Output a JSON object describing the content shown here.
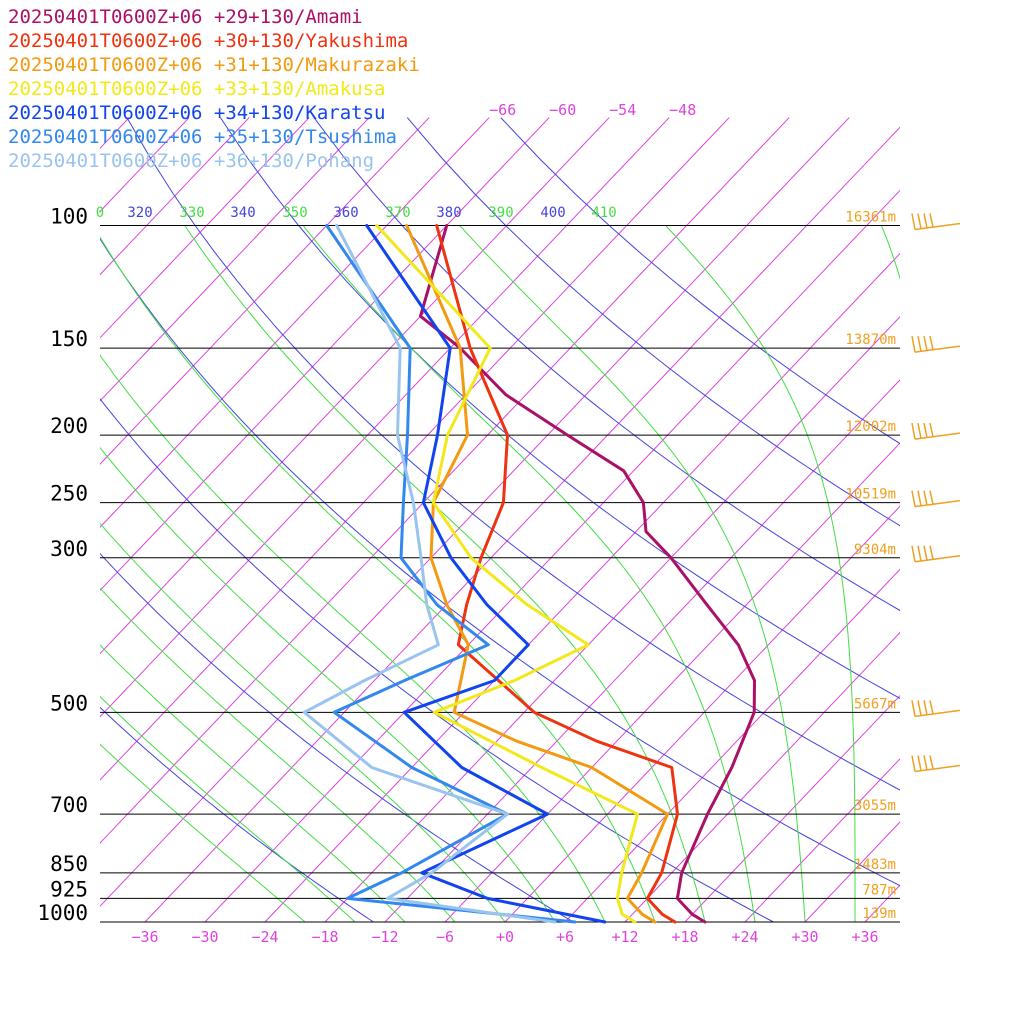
{
  "chart_data": {
    "type": "line",
    "title": "",
    "xlabel": "",
    "ylabel": "",
    "x_axis_unit": "°C (skewed isotherms)",
    "y_axis_scale": "log pressure (hPa)",
    "pressure_levels": [
      100,
      150,
      200,
      250,
      300,
      500,
      700,
      850,
      925,
      1000
    ],
    "pressure_level_labels": [
      "100",
      "150",
      "200",
      "250",
      "300",
      "500",
      "700",
      "850",
      "925",
      "1000"
    ],
    "temperature_ticks": [
      -36,
      -30,
      -24,
      -18,
      -12,
      -6,
      0,
      6,
      12,
      18,
      24,
      30,
      36
    ],
    "temperature_tick_labels": [
      "−36",
      "−30",
      "−24",
      "−18",
      "−12",
      "−6",
      "+0",
      "+6",
      "+12",
      "+18",
      "+24",
      "+30",
      "+36"
    ],
    "upper_isotherm_labels": [
      "−66",
      "−60",
      "−54",
      "−48"
    ],
    "theta_labels": [
      {
        "text": "0",
        "color": "#44dd44"
      },
      {
        "text": "320",
        "color": "#4444dd"
      },
      {
        "text": "330",
        "color": "#44dd44"
      },
      {
        "text": "340",
        "color": "#4444dd"
      },
      {
        "text": "350",
        "color": "#44dd44"
      },
      {
        "text": "360",
        "color": "#4444dd"
      },
      {
        "text": "370",
        "color": "#44dd44"
      },
      {
        "text": "380",
        "color": "#4444dd"
      },
      {
        "text": "390",
        "color": "#44dd44"
      },
      {
        "text": "400",
        "color": "#4444dd"
      },
      {
        "text": "410",
        "color": "#44dd44"
      }
    ],
    "heights": [
      {
        "p": 100,
        "label": "16361m"
      },
      {
        "p": 150,
        "label": "13870m"
      },
      {
        "p": 200,
        "label": "12002m"
      },
      {
        "p": 250,
        "label": "10519m"
      },
      {
        "p": 300,
        "label": "9304m"
      },
      {
        "p": 500,
        "label": "5667m"
      },
      {
        "p": 700,
        "label": "3055m"
      },
      {
        "p": 850,
        "label": "1483m"
      },
      {
        "p": 925,
        "label": "787m"
      },
      {
        "p": 1000,
        "label": "139m"
      }
    ],
    "colors": {
      "isotherm": "#dd44dd",
      "dry_adiabat": "#4444dd",
      "moist_adiabat": "#44dd44",
      "barb": "#f0a020",
      "height_label": "#f0a020",
      "temperature_label": "#dd44dd"
    },
    "series": [
      {
        "name": "2025040 1T0600Z+06 +29+130/Amami",
        "label": "20250401T0600Z+06 +29+130/Amami",
        "color": "#aa1166",
        "temperature": [
          {
            "p": 1000,
            "t": 20.0
          },
          {
            "p": 975,
            "t": 18.0
          },
          {
            "p": 925,
            "t": 15.0
          },
          {
            "p": 850,
            "t": 13.0
          },
          {
            "p": 700,
            "t": 10.0
          },
          {
            "p": 600,
            "t": 8.0
          },
          {
            "p": 500,
            "t": 5.0
          },
          {
            "p": 450,
            "t": 2.0
          },
          {
            "p": 400,
            "t": -3.0
          },
          {
            "p": 350,
            "t": -10.0
          },
          {
            "p": 300,
            "t": -18.0
          },
          {
            "p": 275,
            "t": -23.0
          },
          {
            "p": 250,
            "t": -26.0
          },
          {
            "p": 225,
            "t": -31.0
          },
          {
            "p": 200,
            "t": -40.0
          },
          {
            "p": 175,
            "t": -50.0
          },
          {
            "p": 150,
            "t": -59.0
          },
          {
            "p": 135,
            "t": -66.0
          },
          {
            "p": 100,
            "t": -72.0
          }
        ]
      },
      {
        "name": "2025040 1T0600Z+06 +30+130/Yakushima",
        "label": "20250401T0600Z+06 +30+130/Yakushima",
        "color": "#ee3311",
        "temperature": [
          {
            "p": 1000,
            "t": 17.0
          },
          {
            "p": 975,
            "t": 15.0
          },
          {
            "p": 925,
            "t": 12.0
          },
          {
            "p": 850,
            "t": 11.0
          },
          {
            "p": 700,
            "t": 7.0
          },
          {
            "p": 600,
            "t": 2.0
          },
          {
            "p": 550,
            "t": -8.0
          },
          {
            "p": 500,
            "t": -17.0
          },
          {
            "p": 400,
            "t": -31.0
          },
          {
            "p": 350,
            "t": -34.0
          },
          {
            "p": 300,
            "t": -37.0
          },
          {
            "p": 250,
            "t": -40.0
          },
          {
            "p": 200,
            "t": -46.0
          },
          {
            "p": 150,
            "t": -58.0
          },
          {
            "p": 100,
            "t": -73.0
          }
        ]
      },
      {
        "name": "2025040 1T0600Z+06 +31+130/Makurazaki",
        "label": "20250401T0600Z+06 +31+130/Makurazaki",
        "color": "#f39a10",
        "temperature": [
          {
            "p": 1000,
            "t": 15.0
          },
          {
            "p": 975,
            "t": 13.0
          },
          {
            "p": 925,
            "t": 10.0
          },
          {
            "p": 850,
            "t": 9.0
          },
          {
            "p": 700,
            "t": 6.0
          },
          {
            "p": 600,
            "t": -6.0
          },
          {
            "p": 550,
            "t": -16.0
          },
          {
            "p": 500,
            "t": -25.0
          },
          {
            "p": 400,
            "t": -30.0
          },
          {
            "p": 350,
            "t": -36.0
          },
          {
            "p": 300,
            "t": -42.0
          },
          {
            "p": 250,
            "t": -47.0
          },
          {
            "p": 200,
            "t": -50.0
          },
          {
            "p": 150,
            "t": -59.0
          },
          {
            "p": 100,
            "t": -76.0
          }
        ]
      },
      {
        "name": "2025040 1T0600Z+06 +33+130/Amakusa",
        "label": "20250401T0600Z+06 +33+130/Amakusa",
        "color": "#f2e81a",
        "temperature": [
          {
            "p": 1000,
            "t": 13.0
          },
          {
            "p": 975,
            "t": 11.0
          },
          {
            "p": 925,
            "t": 9.0
          },
          {
            "p": 850,
            "t": 7.0
          },
          {
            "p": 700,
            "t": 3.0
          },
          {
            "p": 600,
            "t": -11.0
          },
          {
            "p": 500,
            "t": -27.0
          },
          {
            "p": 450,
            "t": -22.0
          },
          {
            "p": 400,
            "t": -18.0
          },
          {
            "p": 350,
            "t": -28.0
          },
          {
            "p": 300,
            "t": -38.0
          },
          {
            "p": 250,
            "t": -47.0
          },
          {
            "p": 200,
            "t": -52.0
          },
          {
            "p": 150,
            "t": -56.0
          },
          {
            "p": 100,
            "t": -79.0
          }
        ]
      },
      {
        "name": "2025040 1T0600Z+06 +34+130/Karatsu",
        "label": "20250401T0600Z+06 +34+130/Karatsu",
        "color": "#1144ee",
        "temperature": [
          {
            "p": 1000,
            "t": 10.0
          },
          {
            "p": 925,
            "t": -4.0
          },
          {
            "p": 850,
            "t": -13.0
          },
          {
            "p": 700,
            "t": -6.0
          },
          {
            "p": 600,
            "t": -19.0
          },
          {
            "p": 500,
            "t": -30.0
          },
          {
            "p": 450,
            "t": -24.0
          },
          {
            "p": 400,
            "t": -24.0
          },
          {
            "p": 350,
            "t": -32.0
          },
          {
            "p": 300,
            "t": -40.0
          },
          {
            "p": 250,
            "t": -48.0
          },
          {
            "p": 200,
            "t": -53.0
          },
          {
            "p": 150,
            "t": -60.0
          },
          {
            "p": 100,
            "t": -80.0
          }
        ]
      },
      {
        "name": "2025040 1T0600Z+06 +35+130/Tsushima",
        "label": "20250401T0600Z+06 +35+130/Tsushima",
        "color": "#3388ee",
        "temperature": [
          {
            "p": 1000,
            "t": 7.0
          },
          {
            "p": 925,
            "t": -18.0
          },
          {
            "p": 850,
            "t": -15.0
          },
          {
            "p": 700,
            "t": -10.0
          },
          {
            "p": 600,
            "t": -24.0
          },
          {
            "p": 500,
            "t": -37.0
          },
          {
            "p": 450,
            "t": -33.0
          },
          {
            "p": 400,
            "t": -28.0
          },
          {
            "p": 350,
            "t": -37.0
          },
          {
            "p": 300,
            "t": -45.0
          },
          {
            "p": 250,
            "t": -50.0
          },
          {
            "p": 200,
            "t": -56.0
          },
          {
            "p": 150,
            "t": -64.0
          },
          {
            "p": 100,
            "t": -84.0
          }
        ]
      },
      {
        "name": "2025040 1T0600Z+06 +36+130/Pohang",
        "label": "20250401T0600Z+06 +36+130/Pohang",
        "color": "#99c4ee",
        "temperature": [
          {
            "p": 1000,
            "t": 5.0
          },
          {
            "p": 925,
            "t": -14.0
          },
          {
            "p": 850,
            "t": -12.0
          },
          {
            "p": 700,
            "t": -10.0
          },
          {
            "p": 600,
            "t": -28.0
          },
          {
            "p": 500,
            "t": -40.0
          },
          {
            "p": 450,
            "t": -37.0
          },
          {
            "p": 400,
            "t": -33.0
          },
          {
            "p": 350,
            "t": -38.0
          },
          {
            "p": 300,
            "t": -43.0
          },
          {
            "p": 250,
            "t": -49.0
          },
          {
            "p": 200,
            "t": -57.0
          },
          {
            "p": 150,
            "t": -65.0
          },
          {
            "p": 100,
            "t": -83.0
          }
        ]
      }
    ],
    "wind_barbs_pressure_levels": [
      100,
      150,
      200,
      250,
      300,
      500,
      600
    ]
  }
}
